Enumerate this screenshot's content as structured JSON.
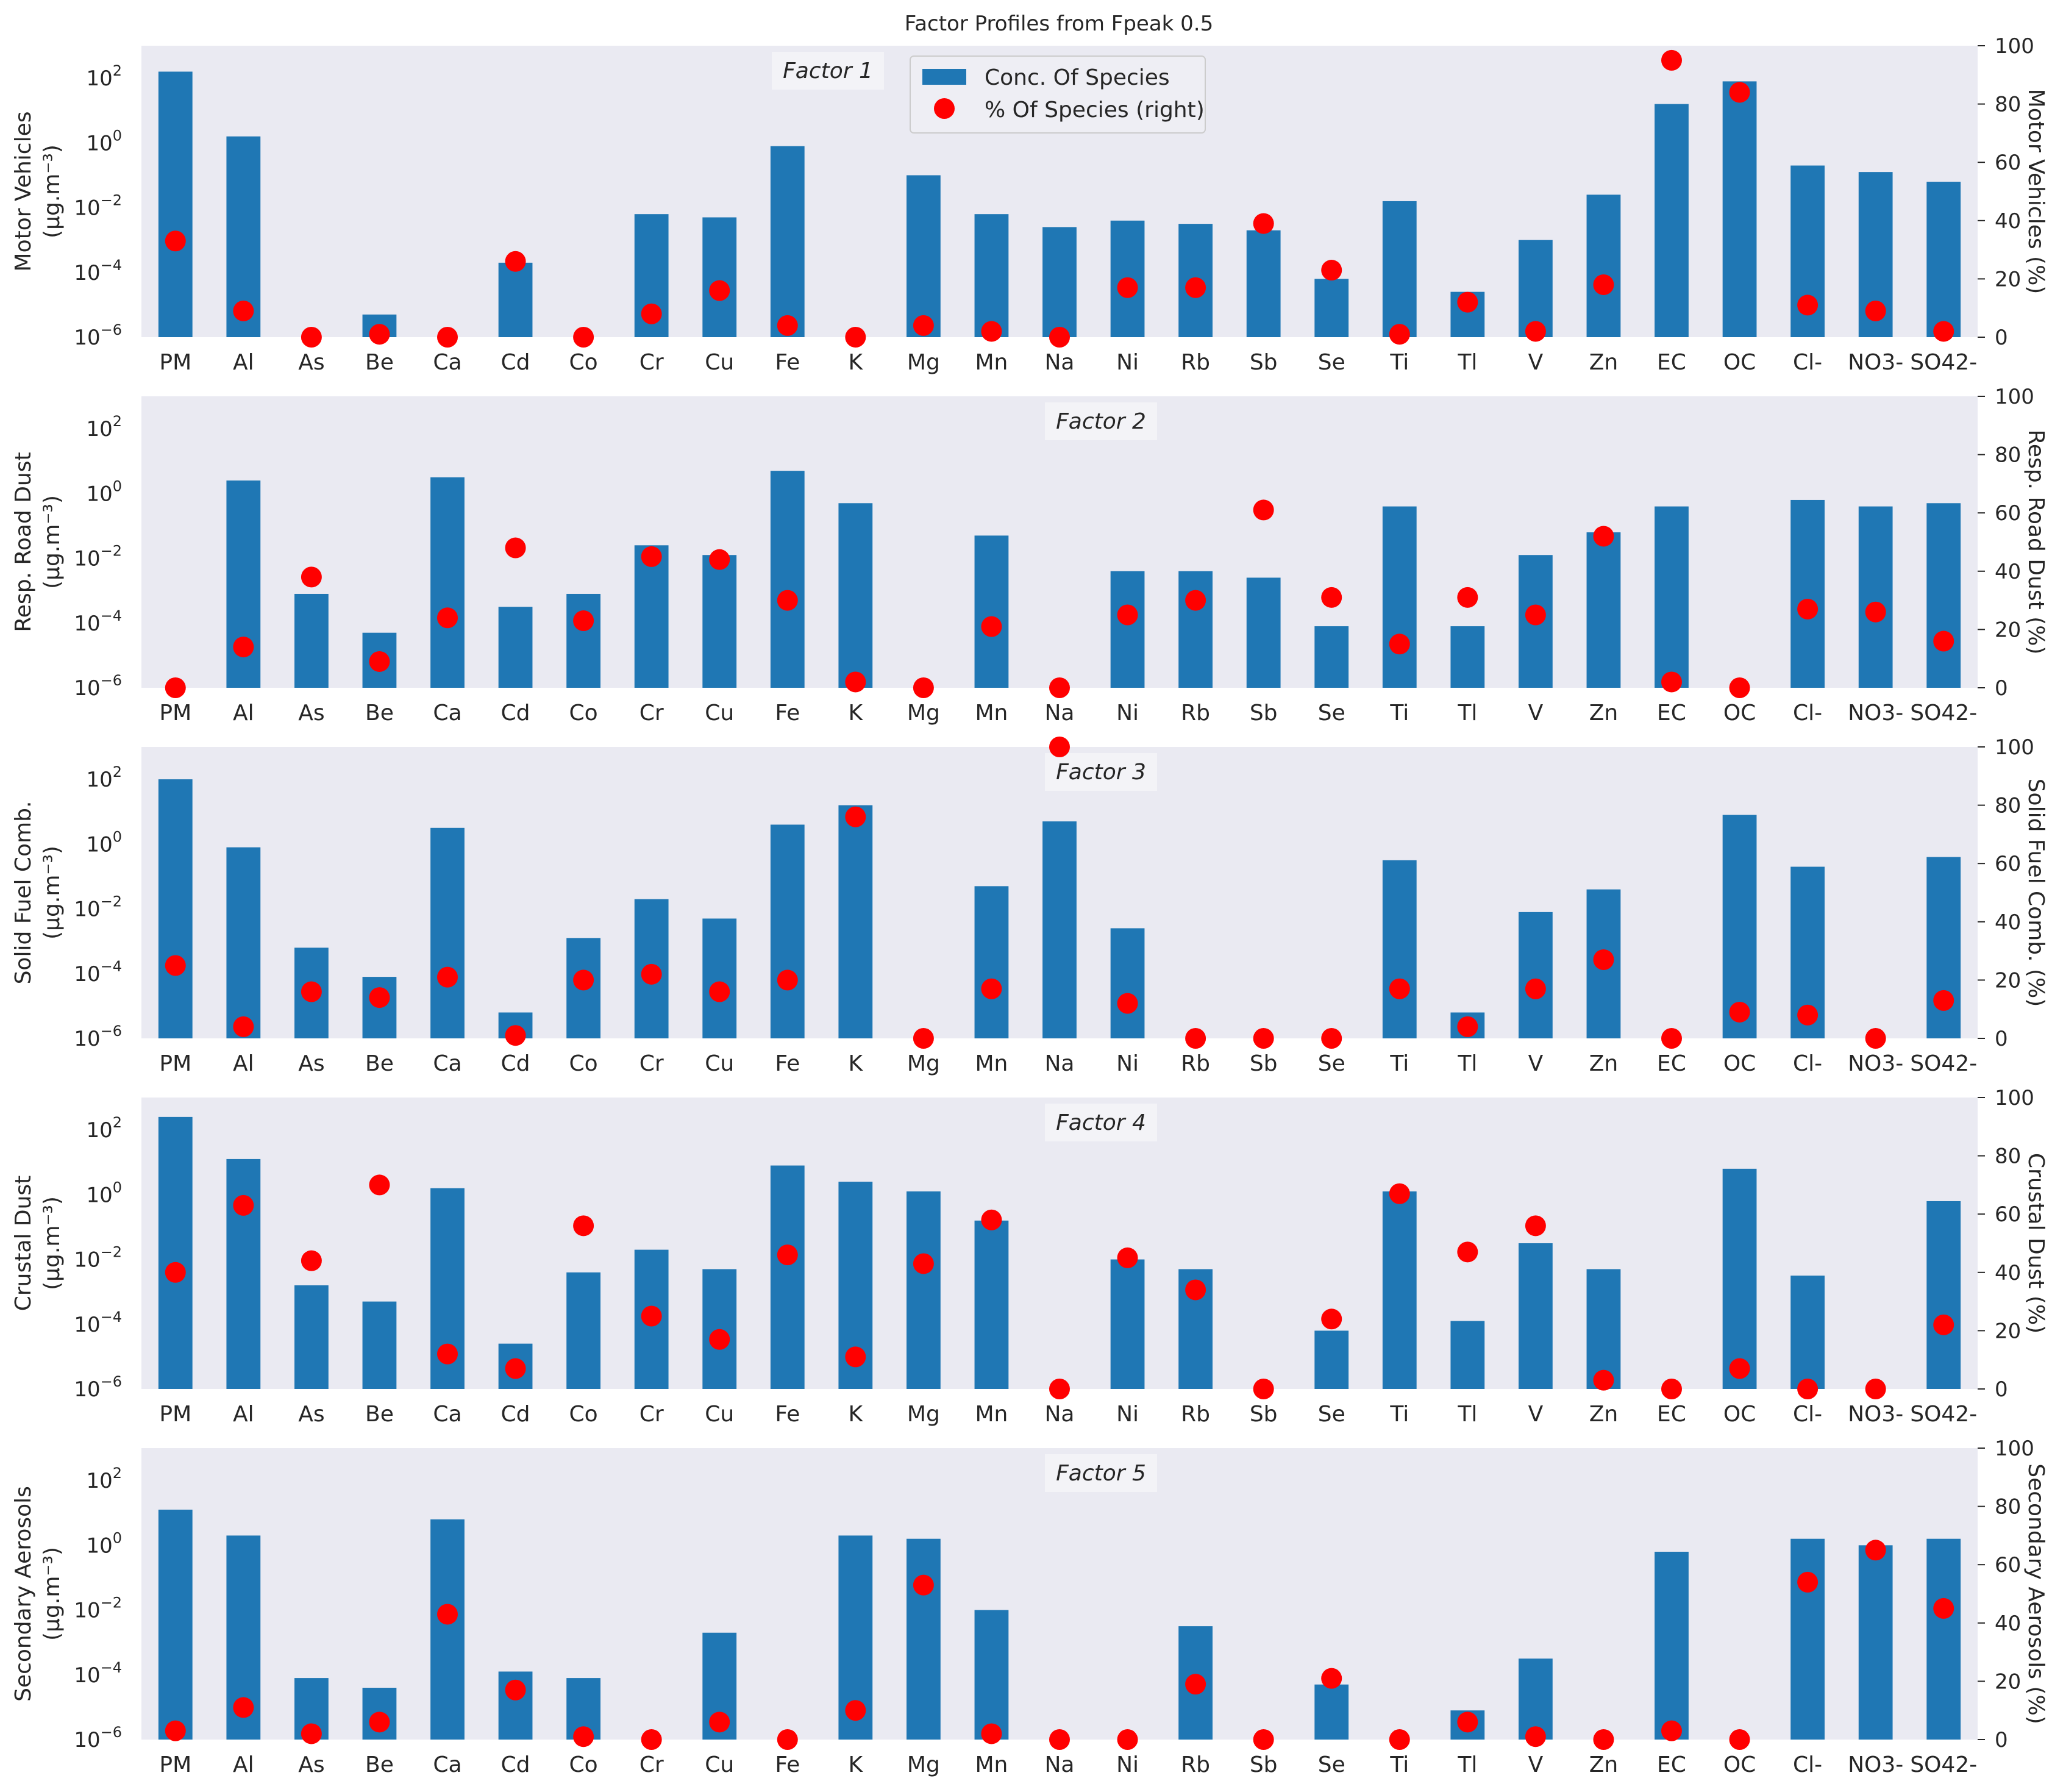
{
  "chart_data": {
    "type": "bar+scatter",
    "title": "Factor Profiles from Fpeak 0.5",
    "categories": [
      "PM",
      "Al",
      "As",
      "Be",
      "Ca",
      "Cd",
      "Co",
      "Cr",
      "Cu",
      "Fe",
      "K",
      "Mg",
      "Mn",
      "Na",
      "Ni",
      "Rb",
      "Sb",
      "Se",
      "Ti",
      "Tl",
      "V",
      "Zn",
      "EC",
      "OC",
      "Cl-",
      "NO3-",
      "SO42-"
    ],
    "left_axis": {
      "scale": "log",
      "range": [
        1e-06,
        1000
      ],
      "ticks": [
        -6,
        -4,
        -2,
        0,
        2
      ],
      "unit": "(µg.m⁻³)"
    },
    "right_axis": {
      "scale": "linear",
      "range": [
        0,
        100
      ],
      "ticks": [
        0,
        20,
        40,
        60,
        80,
        100
      ]
    },
    "legend": {
      "location": "top-center",
      "entries": [
        "Conc. Of Species",
        "% Of Species (right)"
      ]
    },
    "panels": [
      {
        "factor_label": "Factor 1",
        "ylabel": "Motor Vehicles",
        "ylabel_right": "Motor Vehicles (%)",
        "factor_position": "center-left",
        "bars_log10": [
          2.2,
          0.2,
          null,
          -5.3,
          null,
          -3.7,
          null,
          -2.2,
          -2.3,
          -0.1,
          null,
          -1.0,
          -2.2,
          -2.6,
          -2.4,
          -2.5,
          -2.7,
          -4.2,
          -1.8,
          -4.6,
          -3.0,
          -1.6,
          1.2,
          1.9,
          -0.7,
          -0.9,
          -1.2
        ],
        "percent": [
          33,
          9,
          0,
          1,
          0,
          26,
          0,
          8,
          16,
          4,
          0,
          4,
          2,
          0,
          17,
          17,
          39,
          23,
          1,
          12,
          2,
          18,
          95,
          84,
          11,
          9,
          2
        ]
      },
      {
        "factor_label": "Factor 2",
        "ylabel": "Resp. Road Dust",
        "ylabel_right": "Resp. Road Dust (%)",
        "factor_position": "center",
        "bars_log10": [
          null,
          0.4,
          -3.1,
          -4.3,
          0.5,
          -3.5,
          -3.1,
          -1.6,
          -1.9,
          0.7,
          -0.3,
          null,
          -1.3,
          null,
          -2.4,
          -2.4,
          -2.6,
          -4.1,
          -0.4,
          -4.1,
          -1.9,
          -1.2,
          -0.4,
          null,
          -0.2,
          -0.4,
          -0.3
        ],
        "percent": [
          0,
          14,
          38,
          9,
          24,
          48,
          23,
          45,
          44,
          30,
          2,
          0,
          21,
          0,
          25,
          30,
          61,
          31,
          15,
          31,
          25,
          52,
          2,
          0,
          27,
          26,
          16
        ]
      },
      {
        "factor_label": "Factor 3",
        "ylabel": "Solid Fuel Comb.",
        "ylabel_right": "Solid Fuel Comb. (%)",
        "factor_position": "center",
        "bars_log10": [
          2.0,
          -0.1,
          -3.2,
          -4.1,
          0.5,
          -5.2,
          -2.9,
          -1.7,
          -2.3,
          0.6,
          1.2,
          null,
          -1.3,
          0.7,
          -2.6,
          null,
          null,
          null,
          -0.5,
          -5.2,
          -2.1,
          -1.4,
          null,
          0.9,
          -0.7,
          null,
          -0.4
        ],
        "percent": [
          25,
          4,
          16,
          14,
          21,
          1,
          20,
          22,
          16,
          20,
          76,
          0,
          17,
          100,
          12,
          0,
          0,
          0,
          17,
          4,
          17,
          27,
          0,
          9,
          8,
          0,
          13
        ]
      },
      {
        "factor_label": "Factor 4",
        "ylabel": "Crustal Dust",
        "ylabel_right": "Crustal Dust (%)",
        "factor_position": "center",
        "bars_log10": [
          2.4,
          1.1,
          -2.8,
          -3.3,
          0.2,
          -4.6,
          -2.4,
          -1.7,
          -2.3,
          0.9,
          0.4,
          0.1,
          -0.8,
          null,
          -2.0,
          -2.3,
          null,
          -4.2,
          0.1,
          -3.9,
          -1.5,
          -2.3,
          null,
          0.8,
          -2.5,
          null,
          -0.2
        ],
        "percent": [
          40,
          63,
          44,
          70,
          12,
          7,
          56,
          25,
          17,
          46,
          11,
          43,
          58,
          0,
          45,
          34,
          0,
          24,
          67,
          47,
          56,
          3,
          0,
          7,
          0,
          0,
          22
        ]
      },
      {
        "factor_label": "Factor 5",
        "ylabel": "Secondary Aerosols",
        "ylabel_right": "Secondary Aerosols (%)",
        "factor_position": "center",
        "bars_log10": [
          1.1,
          0.3,
          -4.1,
          -4.4,
          0.8,
          -3.9,
          -4.1,
          null,
          -2.7,
          null,
          0.3,
          0.2,
          -2.0,
          null,
          null,
          -2.5,
          null,
          -4.3,
          null,
          -5.1,
          -3.5,
          null,
          -0.2,
          null,
          0.2,
          0.0,
          0.2
        ],
        "percent": [
          3,
          11,
          2,
          6,
          43,
          17,
          1,
          0,
          6,
          0,
          10,
          53,
          2,
          0,
          0,
          19,
          0,
          21,
          0,
          6,
          1,
          0,
          3,
          0,
          54,
          65,
          45
        ]
      }
    ]
  }
}
